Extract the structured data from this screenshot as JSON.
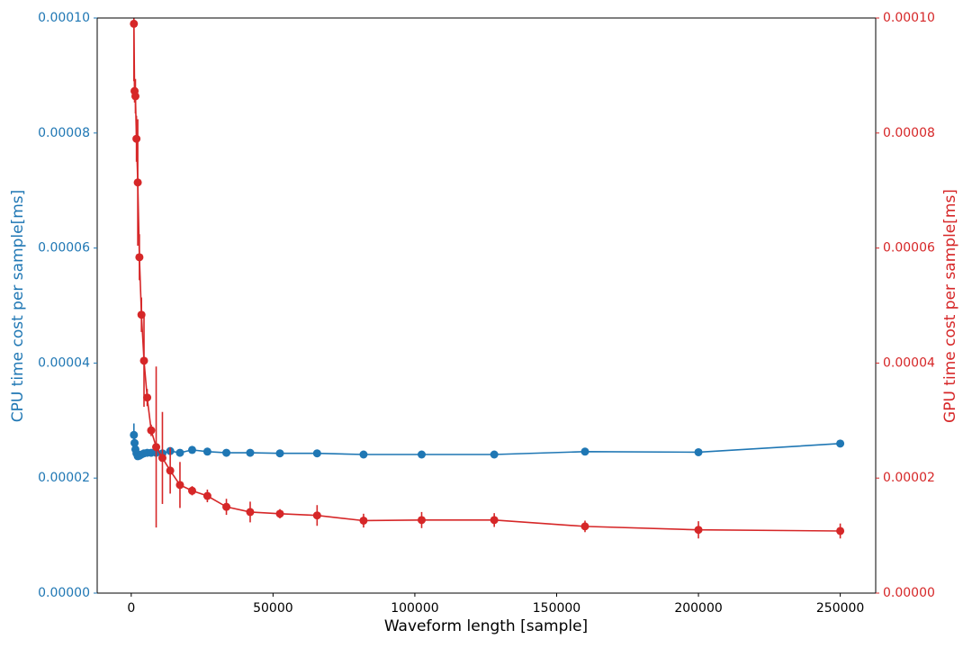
{
  "chart_data": {
    "type": "errorbar",
    "xlabel": "Waveform length [sample]",
    "ylabel": "CPU time cost per sample[ms]",
    "y2label": "GPU time cost per sample[ms]",
    "x": [
      944,
      1181,
      1476,
      1845,
      2306,
      2882,
      3603,
      4504,
      5630,
      7037,
      8796,
      10995,
      13744,
      17180,
      21475,
      26844,
      33554,
      41943,
      52429,
      65536,
      81920,
      102400,
      128000,
      160000,
      200000,
      250000
    ],
    "series": [
      {
        "color": "#1f77b4",
        "axis": "y",
        "values": [
          2.75e-05,
          2.61e-05,
          2.5e-05,
          2.43e-05,
          2.38e-05,
          2.39e-05,
          2.41e-05,
          2.43e-05,
          2.44e-05,
          2.44e-05,
          2.44e-05,
          2.43e-05,
          2.47e-05,
          2.44e-05,
          2.49e-05,
          2.46e-05,
          2.44e-05,
          2.44e-05,
          2.43e-05,
          2.43e-05,
          2.41e-05,
          2.41e-05,
          2.41e-05,
          2.46e-05,
          2.45e-05,
          2.6e-05
        ],
        "errors": [
          2e-06,
          8e-07,
          5e-07,
          3e-07,
          2e-07,
          2e-07,
          2e-07,
          2e-07,
          2e-07,
          2e-07,
          2e-07,
          2e-07,
          2e-07,
          2e-07,
          2e-07,
          2e-07,
          2e-07,
          2e-07,
          2e-07,
          2e-07,
          2e-07,
          2e-07,
          2e-07,
          2e-07,
          2e-07,
          2e-07
        ]
      },
      {
        "color": "#d62728",
        "axis": "y2",
        "values": [
          9.9e-05,
          8.73e-05,
          8.64e-05,
          7.9e-05,
          7.14e-05,
          5.84e-05,
          4.84e-05,
          4.04e-05,
          3.4e-05,
          2.83e-05,
          2.54e-05,
          2.35e-05,
          2.13e-05,
          1.88e-05,
          1.78e-05,
          1.69e-05,
          1.5e-05,
          1.41e-05,
          1.38e-05,
          1.35e-05,
          1.26e-05,
          1.27e-05,
          1.27e-05,
          1.16e-05,
          1.1e-05,
          1.08e-05
        ],
        "errors": [
          1e-05,
          2e-06,
          3e-06,
          4e-06,
          1.1e-05,
          4e-06,
          3e-06,
          8e-06,
          1.5e-06,
          1e-06,
          1.4e-05,
          8e-06,
          4e-06,
          4e-06,
          8e-07,
          1.1e-06,
          1.4e-06,
          1.8e-06,
          8e-07,
          1.8e-06,
          1.2e-06,
          1.4e-06,
          1.2e-06,
          1e-06,
          1.5e-06,
          1.3e-06
        ]
      }
    ],
    "xlim": [
      -12000,
      262500
    ],
    "xticks": [
      0,
      50000,
      100000,
      150000,
      200000,
      250000
    ],
    "ylim": [
      0,
      0.0001
    ],
    "yticks": [
      {
        "value": 0,
        "label": "0.00000"
      },
      {
        "value": 2e-05,
        "label": "0.00002"
      },
      {
        "value": 4e-05,
        "label": "0.00004"
      },
      {
        "value": 6e-05,
        "label": "0.00006"
      },
      {
        "value": 8e-05,
        "label": "0.00008"
      },
      {
        "value": 0.0001,
        "label": "0.00010"
      }
    ],
    "y2lim": [
      0,
      0.0001
    ],
    "y2ticks": [
      {
        "value": 0,
        "label": "0.00000"
      },
      {
        "value": 2e-05,
        "label": "0.00002"
      },
      {
        "value": 4e-05,
        "label": "0.00004"
      },
      {
        "value": 6e-05,
        "label": "0.00006"
      },
      {
        "value": 8e-05,
        "label": "0.00008"
      },
      {
        "value": 0.0001,
        "label": "0.00010"
      }
    ],
    "grid": false
  }
}
